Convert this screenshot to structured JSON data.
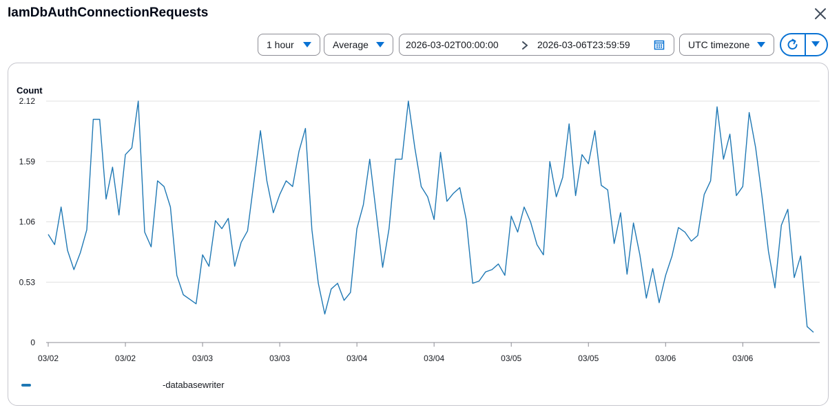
{
  "header": {
    "title": "IamDbAuthConnectionRequests"
  },
  "controls": {
    "period": "1 hour",
    "statistic": "Average",
    "date_start": "2026-03-02T00:00:00",
    "date_end": "2026-03-06T23:59:59",
    "timezone": "UTC timezone"
  },
  "colors": {
    "series": "#1f78b4",
    "accent": "#0972d3",
    "grid": "#e0e0e0"
  },
  "legend": {
    "label": "-databasewriter"
  },
  "chart_data": {
    "type": "line",
    "ylabel": "Count",
    "ylim": [
      0,
      2.12
    ],
    "y_ticks": [
      "0",
      "0.53",
      "1.06",
      "1.59",
      "2.12"
    ],
    "y_tick_values": [
      0,
      0.53,
      1.06,
      1.59,
      2.12
    ],
    "x_tick_labels": [
      "03/02",
      "03/02",
      "03/03",
      "03/03",
      "03/04",
      "03/04",
      "03/05",
      "03/05",
      "03/06",
      "03/06"
    ],
    "x_tick_hours": [
      0,
      12,
      24,
      36,
      48,
      60,
      72,
      84,
      96,
      108
    ],
    "xlim_hours": [
      0,
      119
    ],
    "grid": true,
    "series": [
      {
        "name": "-databasewriter",
        "x_hours": [
          0,
          1,
          2,
          3,
          4,
          5,
          6,
          7,
          8,
          9,
          10,
          11,
          12,
          13,
          14,
          15,
          16,
          17,
          18,
          19,
          20,
          21,
          22,
          23,
          24,
          25,
          26,
          27,
          28,
          29,
          30,
          31,
          32,
          33,
          34,
          35,
          36,
          37,
          38,
          39,
          40,
          41,
          42,
          43,
          44,
          45,
          46,
          47,
          48,
          49,
          50,
          51,
          52,
          53,
          54,
          55,
          56,
          57,
          58,
          59,
          60,
          61,
          62,
          63,
          64,
          65,
          66,
          67,
          68,
          69,
          70,
          71,
          72,
          73,
          74,
          75,
          76,
          77,
          78,
          79,
          80,
          81,
          82,
          83,
          84,
          85,
          86,
          87,
          88,
          89,
          90,
          91,
          92,
          93,
          94,
          95,
          96,
          97,
          98,
          99,
          100,
          101,
          102,
          103,
          104,
          105,
          106,
          107,
          108,
          109,
          110,
          111,
          112,
          113,
          114,
          115,
          116,
          117,
          118,
          119
        ],
        "values": [
          0.95,
          0.86,
          1.19,
          0.81,
          0.64,
          0.79,
          0.99,
          1.96,
          1.96,
          1.26,
          1.54,
          1.12,
          1.65,
          1.71,
          2.12,
          0.97,
          0.84,
          1.42,
          1.37,
          1.19,
          0.59,
          0.42,
          0.38,
          0.34,
          0.77,
          0.67,
          1.07,
          1.0,
          1.09,
          0.67,
          0.88,
          0.98,
          1.42,
          1.86,
          1.42,
          1.14,
          1.3,
          1.42,
          1.37,
          1.68,
          1.88,
          0.99,
          0.52,
          0.25,
          0.47,
          0.52,
          0.37,
          0.44,
          1.0,
          1.21,
          1.61,
          1.14,
          0.66,
          1.0,
          1.61,
          1.61,
          2.12,
          1.71,
          1.37,
          1.28,
          1.08,
          1.67,
          1.24,
          1.31,
          1.36,
          1.08,
          0.52,
          0.54,
          0.62,
          0.64,
          0.69,
          0.59,
          1.11,
          0.97,
          1.19,
          1.06,
          0.86,
          0.77,
          1.59,
          1.28,
          1.45,
          1.92,
          1.29,
          1.65,
          1.57,
          1.86,
          1.38,
          1.34,
          0.87,
          1.14,
          0.6,
          1.05,
          0.77,
          0.39,
          0.65,
          0.35,
          0.59,
          0.76,
          1.01,
          0.97,
          0.89,
          0.94,
          1.3,
          1.42,
          2.07,
          1.61,
          1.83,
          1.29,
          1.37,
          2.02,
          1.71,
          1.28,
          0.8,
          0.48,
          1.03,
          1.17,
          0.57,
          0.76,
          0.14,
          0.09
        ]
      }
    ]
  }
}
